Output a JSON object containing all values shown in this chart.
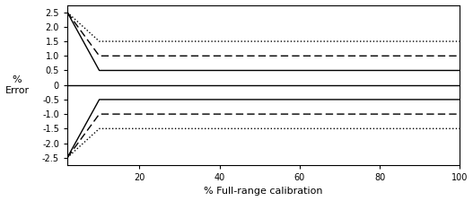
{
  "title": "",
  "xlabel": "% Full-range calibration",
  "ylabel": "%\nError",
  "xlim": [
    2,
    100
  ],
  "ylim": [
    -2.75,
    2.75
  ],
  "yticks": [
    -2.5,
    -2.0,
    -1.5,
    -1.0,
    -0.5,
    0,
    0.5,
    1.0,
    1.5,
    2.0,
    2.5
  ],
  "xticks": [
    20,
    40,
    60,
    80,
    100
  ],
  "line_color": "black",
  "background": "white",
  "solid_asymptote": 0.5,
  "dashed_asymptote": 1.0,
  "dotted_asymptote": 1.5,
  "x_start": 2.0,
  "x_knee": 10.0,
  "peak_positive": 2.5,
  "peak_negative": -2.5
}
